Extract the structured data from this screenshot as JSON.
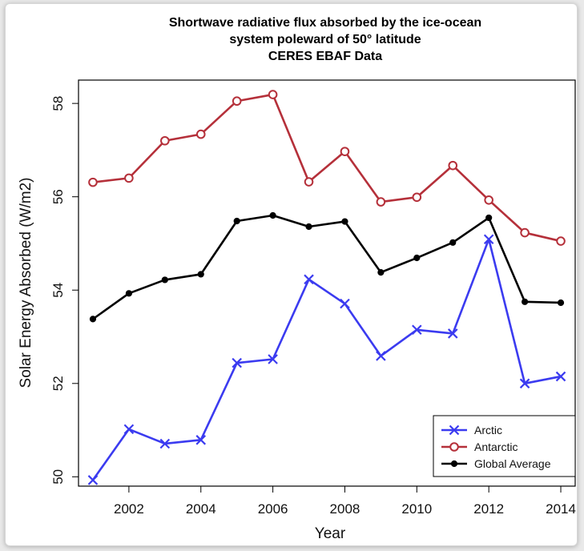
{
  "chart_data": {
    "type": "line",
    "title_lines": [
      "Shortwave radiative flux absorbed by the ice-ocean",
      "system poleward of 50° latitude",
      "CERES EBAF Data"
    ],
    "xlabel": "Year",
    "ylabel": "Solar Energy Absorbed (W/m2)",
    "x": [
      2001,
      2002,
      2003,
      2004,
      2005,
      2006,
      2007,
      2008,
      2009,
      2010,
      2011,
      2012,
      2013,
      2014
    ],
    "xticks": [
      "2002",
      "2004",
      "2006",
      "2008",
      "2010",
      "2012",
      "2014"
    ],
    "yticks": [
      "50",
      "52",
      "54",
      "56",
      "58"
    ],
    "xlim": [
      2000.6,
      2014.4
    ],
    "ylim": [
      49.8,
      58.5
    ],
    "legend_position": "bottom-right",
    "series": [
      {
        "name": "Arctic",
        "marker": "x",
        "color": "#3b3bf0",
        "values": [
          49.93,
          51.02,
          50.71,
          50.79,
          52.44,
          52.52,
          54.23,
          53.71,
          52.59,
          53.15,
          53.07,
          55.09,
          52.0,
          52.15
        ]
      },
      {
        "name": "Antarctic",
        "marker": "circle-open",
        "color": "#b5303a",
        "values": [
          56.31,
          56.4,
          57.2,
          57.34,
          58.05,
          58.19,
          56.32,
          56.97,
          55.89,
          55.99,
          56.67,
          55.93,
          55.23,
          55.05
        ]
      },
      {
        "name": "Global Average",
        "marker": "circle-filled",
        "color": "#000000",
        "values": [
          53.38,
          53.93,
          54.22,
          54.34,
          55.48,
          55.6,
          55.36,
          55.47,
          54.38,
          54.69,
          55.02,
          55.55,
          53.75,
          53.73
        ]
      }
    ]
  }
}
